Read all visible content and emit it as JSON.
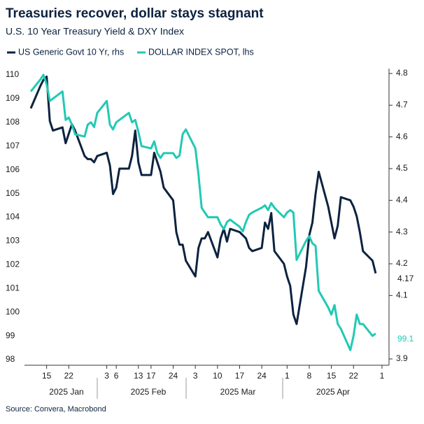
{
  "chart_data": {
    "type": "line",
    "title": "Treasuries recover, dollar stays stagnant",
    "subtitle": "U.S. 10 Year Treasury Yield & DXY Index",
    "source": "Source: Convera, Macrobond",
    "x": [
      "2025-01-10",
      "2025-01-13",
      "2025-01-14",
      "2025-01-15",
      "2025-01-16",
      "2025-01-17",
      "2025-01-20",
      "2025-01-21",
      "2025-01-22",
      "2025-01-23",
      "2025-01-24",
      "2025-01-27",
      "2025-01-28",
      "2025-01-29",
      "2025-01-30",
      "2025-01-31",
      "2025-02-03",
      "2025-02-04",
      "2025-02-05",
      "2025-02-06",
      "2025-02-07",
      "2025-02-10",
      "2025-02-11",
      "2025-02-12",
      "2025-02-13",
      "2025-02-14",
      "2025-02-17",
      "2025-02-18",
      "2025-02-19",
      "2025-02-20",
      "2025-02-21",
      "2025-02-24",
      "2025-02-25",
      "2025-02-26",
      "2025-02-27",
      "2025-02-28",
      "2025-03-03",
      "2025-03-04",
      "2025-03-05",
      "2025-03-06",
      "2025-03-07",
      "2025-03-10",
      "2025-03-11",
      "2025-03-12",
      "2025-03-13",
      "2025-03-14",
      "2025-03-17",
      "2025-03-18",
      "2025-03-19",
      "2025-03-20",
      "2025-03-21",
      "2025-03-24",
      "2025-03-25",
      "2025-03-26",
      "2025-03-27",
      "2025-03-28",
      "2025-03-31",
      "2025-04-01",
      "2025-04-02",
      "2025-04-03",
      "2025-04-04",
      "2025-04-07",
      "2025-04-08",
      "2025-04-09",
      "2025-04-10",
      "2025-04-11",
      "2025-04-14",
      "2025-04-15",
      "2025-04-16",
      "2025-04-17",
      "2025-04-18",
      "2025-04-21",
      "2025-04-22",
      "2025-04-23",
      "2025-04-24",
      "2025-04-25",
      "2025-04-28",
      "2025-04-29"
    ],
    "series": [
      {
        "name": "US Generic Govt 10 Yr, rhs",
        "color": "#0d2240",
        "axis": "y2",
        "values": [
          4.69,
          4.76,
          4.78,
          4.79,
          4.65,
          4.62,
          4.63,
          4.58,
          4.61,
          4.64,
          4.62,
          4.54,
          4.53,
          4.53,
          4.52,
          4.54,
          4.55,
          4.51,
          4.42,
          4.44,
          4.5,
          4.5,
          4.54,
          4.62,
          4.52,
          4.48,
          4.48,
          4.55,
          4.52,
          4.49,
          4.44,
          4.4,
          4.3,
          4.26,
          4.26,
          4.21,
          4.16,
          4.25,
          4.28,
          4.28,
          4.3,
          4.22,
          4.28,
          4.31,
          4.27,
          4.31,
          4.3,
          4.29,
          4.28,
          4.25,
          4.24,
          4.25,
          4.33,
          4.31,
          4.36,
          4.24,
          4.2,
          4.16,
          4.13,
          4.04,
          4.01,
          4.19,
          4.29,
          4.33,
          4.42,
          4.49,
          4.38,
          4.33,
          4.28,
          4.32,
          4.41,
          4.4,
          4.38,
          4.35,
          4.3,
          4.24,
          4.21,
          4.17
        ]
      },
      {
        "name": "DOLLAR INDEX SPOT, lhs",
        "color": "#22c9b4",
        "values": [
          109.3,
          109.8,
          110.0,
          109.6,
          108.9,
          109.0,
          109.3,
          108.1,
          108.2,
          107.9,
          107.5,
          107.4,
          107.9,
          108.0,
          107.8,
          108.4,
          108.9,
          107.9,
          107.7,
          108.0,
          108.1,
          108.4,
          108.0,
          108.1,
          107.6,
          107.0,
          106.9,
          107.2,
          106.7,
          106.5,
          106.7,
          106.7,
          106.5,
          106.6,
          107.5,
          107.7,
          106.9,
          105.8,
          104.4,
          104.2,
          104.0,
          104.0,
          103.7,
          103.5,
          103.8,
          103.9,
          103.6,
          103.4,
          103.8,
          104.1,
          104.2,
          104.4,
          104.5,
          104.3,
          104.6,
          104.4,
          104.0,
          104.2,
          104.3,
          104.2,
          102.2,
          103.0,
          103.2,
          102.9,
          102.8,
          100.9,
          100.2,
          99.9,
          100.3,
          99.5,
          99.3,
          98.4,
          99.0,
          99.9,
          99.5,
          99.5,
          99.0,
          99.1
        ]
      }
    ],
    "xlim": [
      "2025-01-08",
      "2025-05-03"
    ],
    "xticks": [
      {
        "value": "2025-01-15",
        "label": "15"
      },
      {
        "value": "2025-01-22",
        "label": "22"
      },
      {
        "value": "2025-02-03",
        "label": "3"
      },
      {
        "value": "2025-02-06",
        "label": "6"
      },
      {
        "value": "2025-02-13",
        "label": "13"
      },
      {
        "value": "2025-02-17",
        "label": "17"
      },
      {
        "value": "2025-02-24",
        "label": "24"
      },
      {
        "value": "2025-03-03",
        "label": "3"
      },
      {
        "value": "2025-03-10",
        "label": "10"
      },
      {
        "value": "2025-03-17",
        "label": "17"
      },
      {
        "value": "2025-03-24",
        "label": "24"
      },
      {
        "value": "2025-04-01",
        "label": "1"
      },
      {
        "value": "2025-04-08",
        "label": "8"
      },
      {
        "value": "2025-04-15",
        "label": "15"
      },
      {
        "value": "2025-04-22",
        "label": "22"
      },
      {
        "value": "2025-05-01",
        "label": "1"
      }
    ],
    "period_labels": [
      "2025 Jan",
      "2025 Feb",
      "2025 Mar",
      "2025 Apr"
    ],
    "ylim": [
      98,
      110
    ],
    "yticks": [
      98,
      99,
      100,
      101,
      102,
      103,
      104,
      105,
      106,
      107,
      108,
      109,
      110
    ],
    "y2lim": [
      3.9,
      4.8
    ],
    "y2ticks": [
      3.9,
      4.1,
      4.2,
      4.3,
      4.4,
      4.5,
      4.6,
      4.7,
      4.8
    ],
    "grid": false
  }
}
